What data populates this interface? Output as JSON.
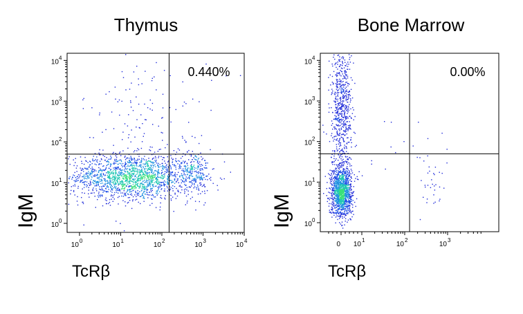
{
  "chart_data": [
    {
      "type": "scatter",
      "title": "Thymus",
      "xlabel": "TcRβ",
      "ylabel": "IgM",
      "x_scale": "log",
      "y_scale": "log",
      "xlim": [
        0.5,
        10000
      ],
      "ylim": [
        0.6,
        15000
      ],
      "x_ticks": [
        {
          "base": "10",
          "exp": "0",
          "value": 1
        },
        {
          "base": "10",
          "exp": "1",
          "value": 10
        },
        {
          "base": "10",
          "exp": "2",
          "value": 100
        },
        {
          "base": "10",
          "exp": "3",
          "value": 1000
        },
        {
          "base": "10",
          "exp": "4",
          "value": 10000
        }
      ],
      "y_ticks": [
        {
          "base": "10",
          "exp": "0",
          "value": 1
        },
        {
          "base": "10",
          "exp": "1",
          "value": 10
        },
        {
          "base": "10",
          "exp": "2",
          "value": 100
        },
        {
          "base": "10",
          "exp": "3",
          "value": 1000
        },
        {
          "base": "10",
          "exp": "4",
          "value": 10000
        }
      ],
      "gate": {
        "x": 150,
        "y": 50
      },
      "quadrant_label": "0.440%",
      "quadrant_position": "top-right",
      "populations": [
        {
          "center": [
            18,
            14
          ],
          "spread": [
            0.75,
            0.28
          ],
          "count": 1700
        },
        {
          "center": [
            600,
            18
          ],
          "spread": [
            0.18,
            0.3
          ],
          "count": 220
        },
        {
          "center": [
            40,
            300
          ],
          "spread": [
            0.8,
            1.0
          ],
          "count": 160
        }
      ],
      "grid": false
    },
    {
      "type": "scatter",
      "title": "Bone Marrow",
      "xlabel": "TcRβ",
      "ylabel": "IgM",
      "x_scale": "biexponential",
      "y_scale": "log",
      "xlim": [
        -8,
        7000
      ],
      "ylim": [
        0.6,
        15000
      ],
      "x_ticks": [
        {
          "base": "0",
          "exp": "",
          "value": 0
        },
        {
          "base": "10",
          "exp": "1",
          "value": 10
        },
        {
          "base": "10",
          "exp": "2",
          "value": 100
        },
        {
          "base": "10",
          "exp": "3",
          "value": 1000
        }
      ],
      "y_ticks": [
        {
          "base": "10",
          "exp": "0",
          "value": 1
        },
        {
          "base": "10",
          "exp": "1",
          "value": 10
        },
        {
          "base": "10",
          "exp": "2",
          "value": 100
        },
        {
          "base": "10",
          "exp": "3",
          "value": 1000
        },
        {
          "base": "10",
          "exp": "4",
          "value": 10000
        }
      ],
      "gate": {
        "x": 130,
        "y": 50
      },
      "quadrant_label": "0.00%",
      "quadrant_position": "top-right",
      "populations": [
        {
          "center": [
            0,
            6
          ],
          "spread": [
            2.5,
            0.3
          ],
          "count": 1300
        },
        {
          "center": [
            0,
            600
          ],
          "spread": [
            2.5,
            0.9
          ],
          "count": 700
        },
        {
          "center": [
            450,
            8
          ],
          "spread": [
            0.18,
            0.3
          ],
          "count": 30
        },
        {
          "center": [
            60,
            80
          ],
          "spread": [
            0.8,
            0.3
          ],
          "count": 20
        }
      ],
      "grid": false
    }
  ]
}
